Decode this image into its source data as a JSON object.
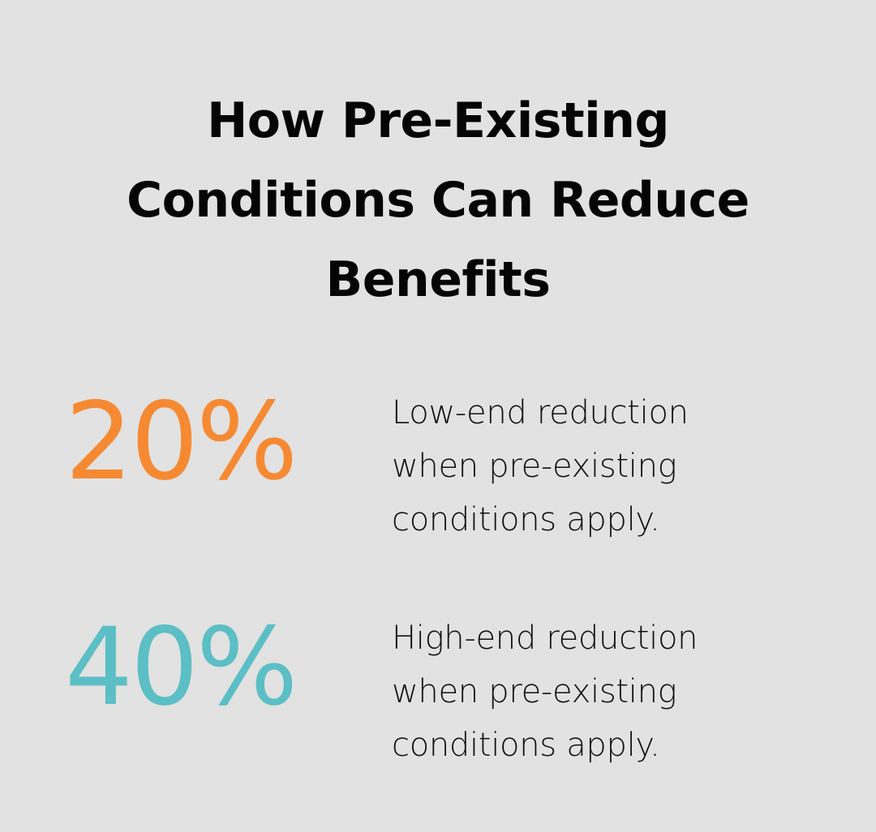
{
  "title": {
    "lines": [
      "How Pre-Existing",
      "Conditions Can Reduce",
      "Benefits"
    ]
  },
  "stats": [
    {
      "value": "20%",
      "color": "#f68a33",
      "description": [
        "Low-end reduction",
        "when pre-existing",
        "conditions apply."
      ]
    },
    {
      "value": "40%",
      "color": "#5bbfc5",
      "description": [
        "High-end reduction",
        "when pre-existing",
        "conditions apply."
      ]
    }
  ],
  "colors": {
    "background": "#e1e2e1",
    "title_text": "#050505",
    "body_text": "#121212",
    "accent_orange": "#f68a33",
    "accent_teal": "#5bbfc5"
  }
}
